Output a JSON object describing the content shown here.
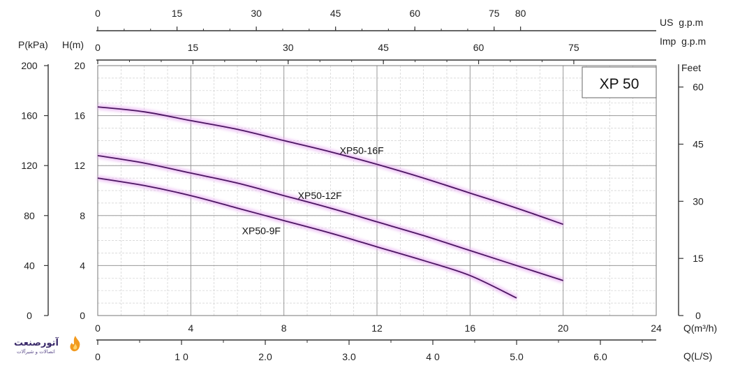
{
  "chart_data": {
    "type": "line",
    "title": "",
    "model_label": "XP 50",
    "grid": true,
    "x_axis": {
      "label": "Q(m³/h)",
      "range": [
        0,
        24
      ],
      "ticks": [
        "0",
        "4",
        "8",
        "12",
        "16",
        "20",
        "24"
      ],
      "tick_values": [
        0,
        4,
        8,
        12,
        16,
        20,
        24
      ]
    },
    "y_axis_head": {
      "label": "H(m)",
      "range": [
        0,
        20
      ],
      "ticks": [
        "0",
        "4",
        "8",
        "12",
        "16",
        "20"
      ],
      "tick_values": [
        0,
        4,
        8,
        12,
        16,
        20
      ]
    },
    "y_axis_pressure": {
      "label": "P(kPa)",
      "ticks": [
        "0",
        "40",
        "80",
        "120",
        "160",
        "200"
      ],
      "tick_values": [
        0,
        40,
        80,
        120,
        160,
        200
      ]
    },
    "y_axis_feet": {
      "label": "Feet",
      "ticks": [
        "0",
        "15",
        "30",
        "45",
        "60"
      ],
      "tick_values": [
        0,
        15,
        30,
        45,
        60
      ]
    },
    "top_axis_us": {
      "label": "US  g.p.m",
      "ticks": [
        "0",
        "15",
        "30",
        "45",
        "60",
        "75",
        "80"
      ],
      "tick_values": [
        0,
        15,
        30,
        45,
        60,
        75,
        80
      ]
    },
    "top_axis_imp": {
      "label": "Imp  g.p.m",
      "ticks": [
        "0",
        "15",
        "30",
        "45",
        "60",
        "75"
      ],
      "tick_values": [
        0,
        15,
        30,
        45,
        60,
        75
      ]
    },
    "bottom_axis_ls": {
      "label": "Q(L/S)",
      "ticks": [
        "0",
        "1 0",
        "2.0",
        "3.0",
        "4 0",
        "5.0",
        "6.0"
      ],
      "tick_values": [
        0,
        1,
        2,
        3,
        4,
        5,
        6
      ]
    },
    "series": [
      {
        "name": "XP50-16F",
        "x": [
          0,
          2,
          4,
          6,
          8,
          10,
          12,
          14,
          16,
          18,
          20
        ],
        "y": [
          16.7,
          16.3,
          15.6,
          14.9,
          14.0,
          13.1,
          12.1,
          11.0,
          9.8,
          8.6,
          7.3
        ],
        "label_at": [
          10.4,
          13.2
        ]
      },
      {
        "name": "XP50-12F",
        "x": [
          0,
          2,
          4,
          6,
          8,
          10,
          12,
          14,
          16,
          18,
          20
        ],
        "y": [
          12.8,
          12.2,
          11.4,
          10.6,
          9.6,
          8.6,
          7.5,
          6.4,
          5.2,
          4.0,
          2.8
        ],
        "label_at": [
          8.6,
          9.6
        ]
      },
      {
        "name": "XP50-9F",
        "x": [
          0,
          2,
          4,
          6,
          8,
          10,
          12,
          14,
          16,
          18
        ],
        "y": [
          11.0,
          10.4,
          9.6,
          8.6,
          7.6,
          6.6,
          5.5,
          4.4,
          3.2,
          1.4
        ],
        "label_at": [
          6.2,
          6.8
        ]
      }
    ],
    "curve_color": "#4a1560",
    "glow_color": "#e9b3f2",
    "grid_color": "#9a9a9a",
    "minor_grid_color": "#cfcfcf"
  },
  "logo": {
    "text": "آتورصنعت",
    "sub": "اتصالات و شیرآلات"
  }
}
